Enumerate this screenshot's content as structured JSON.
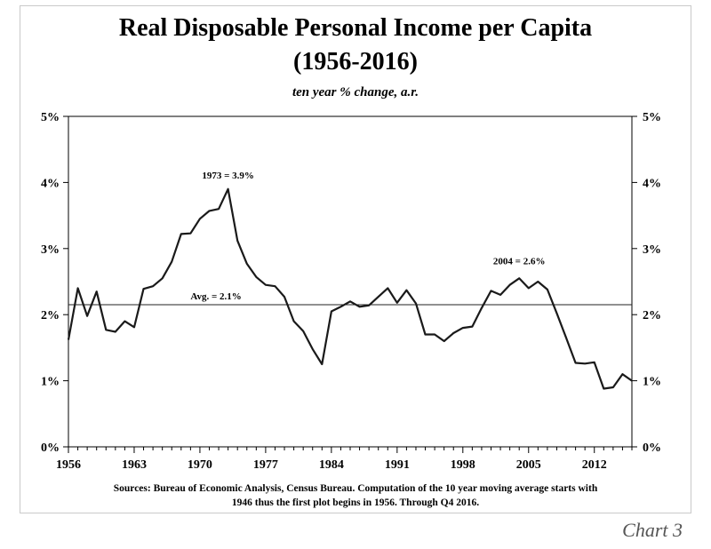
{
  "title_line1": "Real Disposable Personal Income per Capita",
  "title_line2": "(1956-2016)",
  "subtitle": "ten year % change, a.r.",
  "source_line1": "Sources: Bureau of Economic Analysis, Census Bureau. Computation of the 10 year moving average starts with",
  "source_line2": "1946 thus the first plot begins in 1956. Through Q4 2016.",
  "chart_label": "Chart 3",
  "chart_data": {
    "type": "line",
    "title": "Real Disposable Personal Income per Capita (1956-2016)",
    "subtitle": "ten year % change, a.r.",
    "xlabel": "",
    "ylabel": "",
    "xlim": [
      1956,
      2016
    ],
    "ylim": [
      0,
      5
    ],
    "x_ticks": [
      1956,
      1963,
      1970,
      1977,
      1984,
      1991,
      1998,
      2005,
      2012
    ],
    "x_tick_labels": [
      "1956",
      "1963",
      "1970",
      "1977",
      "1984",
      "1991",
      "1998",
      "2005",
      "2012"
    ],
    "y_ticks": [
      0,
      1,
      2,
      3,
      4,
      5
    ],
    "y_tick_labels": [
      "0%",
      "1%",
      "2%",
      "3%",
      "4%",
      "5%"
    ],
    "grid": false,
    "line_color": "#1a1a1a",
    "series": [
      {
        "name": "Real disposable personal income per capita, 10-yr % change a.r.",
        "x": [
          1956,
          1957,
          1958,
          1959,
          1960,
          1961,
          1962,
          1963,
          1964,
          1965,
          1966,
          1967,
          1968,
          1969,
          1970,
          1971,
          1972,
          1973,
          1974,
          1975,
          1976,
          1977,
          1978,
          1979,
          1980,
          1981,
          1982,
          1983,
          1984,
          1985,
          1986,
          1987,
          1988,
          1989,
          1990,
          1991,
          1992,
          1993,
          1994,
          1995,
          1996,
          1997,
          1998,
          1999,
          2000,
          2001,
          2002,
          2003,
          2004,
          2005,
          2006,
          2007,
          2008,
          2009,
          2010,
          2011,
          2012,
          2013,
          2014,
          2015,
          2016
        ],
        "values": [
          1.62,
          2.4,
          1.98,
          2.35,
          1.77,
          1.74,
          1.9,
          1.81,
          2.39,
          2.43,
          2.55,
          2.8,
          3.22,
          3.23,
          3.45,
          3.57,
          3.6,
          3.9,
          3.12,
          2.77,
          2.57,
          2.45,
          2.43,
          2.27,
          1.9,
          1.75,
          1.48,
          1.25,
          2.05,
          2.12,
          2.2,
          2.12,
          2.14,
          2.27,
          2.4,
          2.18,
          2.37,
          2.17,
          1.7,
          1.7,
          1.6,
          1.72,
          1.8,
          1.82,
          2.1,
          2.36,
          2.3,
          2.45,
          2.55,
          2.4,
          2.5,
          2.38,
          2.02,
          1.65,
          1.27,
          1.26,
          1.28,
          0.88,
          0.9,
          1.1,
          1.0
        ]
      }
    ],
    "reference_lines": [
      {
        "name": "average",
        "y": 2.15,
        "label": "Avg. = 2.1%",
        "label_x": 1969
      }
    ],
    "annotations": [
      {
        "text": "1973 = 3.9%",
        "x": 1973,
        "y": 3.9
      },
      {
        "text": "2004 = 2.6%",
        "x": 2004,
        "y": 2.6
      }
    ]
  }
}
